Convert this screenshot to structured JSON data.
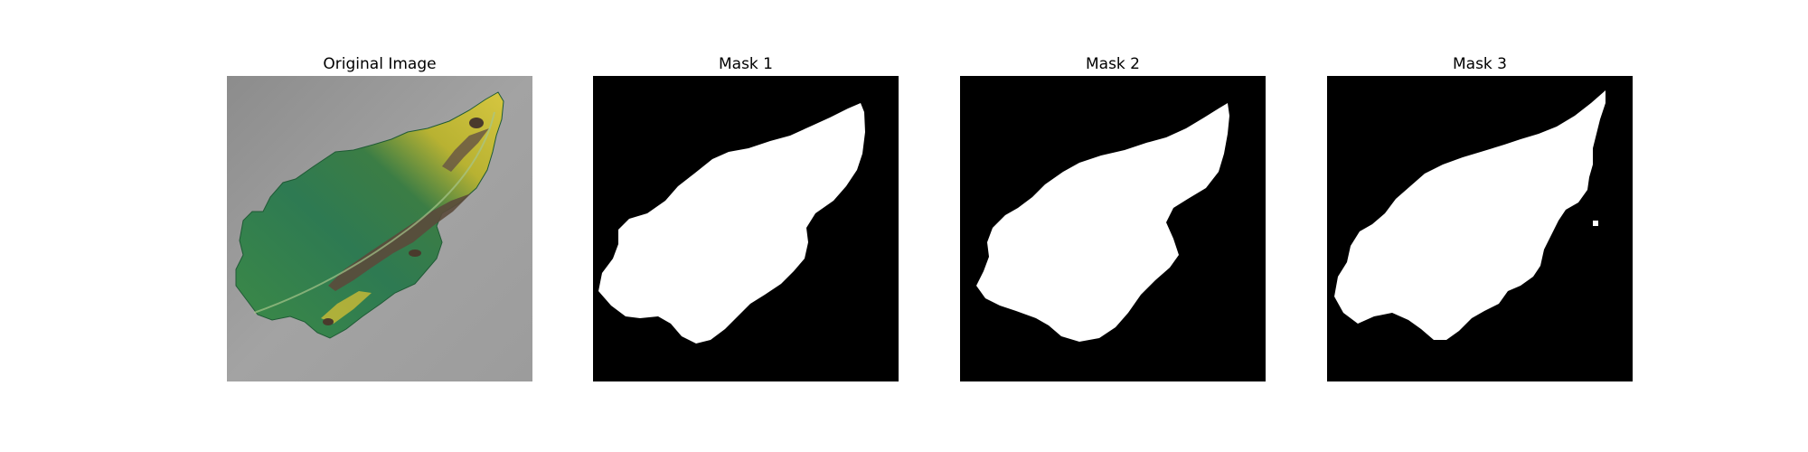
{
  "panels": [
    {
      "title": "Original Image",
      "kind": "photo"
    },
    {
      "title": "Mask 1",
      "kind": "mask"
    },
    {
      "title": "Mask 2",
      "kind": "mask"
    },
    {
      "title": "Mask 3",
      "kind": "mask"
    }
  ],
  "colors": {
    "mask_background": "#000000",
    "mask_foreground": "#ffffff",
    "photo_background": "#9a9a9a",
    "leaf_green": "#2f7a4c",
    "leaf_yellow": "#c9b52c",
    "leaf_brown": "#5b4a3b"
  }
}
